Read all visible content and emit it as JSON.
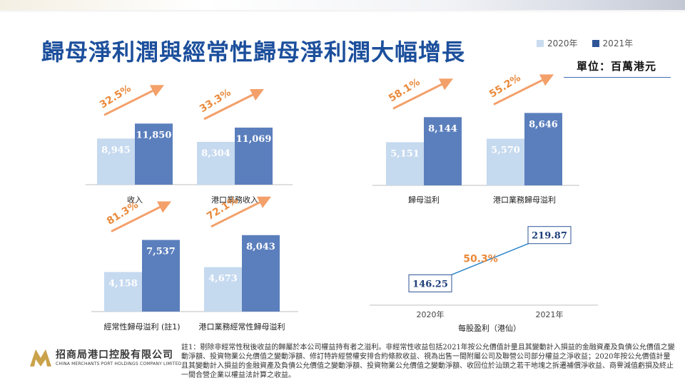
{
  "slide": {
    "title": "歸母淨利潤與經常性歸母淨利潤大幅增長",
    "unit": "單位：百萬港元",
    "footnote": "註1：剔除非經常性稅後收益的歸屬於本公司權益持有者之溢利。非經常性收益包括2021年按公允價值計量且其變動計入損益的金融資產及負債公允價值之變動淨額、投資物業公允價值之變動淨額、修訂特許經營權安排合約條款收益、視為出售一間附屬公司及聯營公司部分權益之淨收益；2020年按公允價值計量且其變動計入損益的金融資產及負債公允價值之變動淨額、投資物業公允價值之變動淨額、收回位於汕頭之若干地塊之拆遷補償淨收益、商譽減值虧損及終止一間合營企業以權益法計算之收益。"
  },
  "legend": {
    "items": [
      {
        "label": "2020年",
        "color": "#c9dcf0"
      },
      {
        "label": "2021年",
        "color": "#2f5597"
      }
    ]
  },
  "logo": {
    "name": "招商局港口控股有限公司",
    "sub": "CHINA MERCHANTS PORT HOLDINGS COMPANY LIMITED"
  },
  "colors": {
    "bar2020": "#c5d9ef",
    "bar2021": "#5b7fbd",
    "arrow": "#f3a06a",
    "growth": "#ea8a3c",
    "line": "#2e86c8",
    "axis": "#bfbfbf"
  },
  "chart_data": [
    {
      "type": "bar",
      "category": "收入",
      "series": [
        {
          "name": "2020年",
          "values": [
            8945
          ]
        },
        {
          "name": "2021年",
          "values": [
            11850
          ]
        }
      ],
      "value_labels": [
        "8,945",
        "11,850"
      ],
      "growth": "32.5%"
    },
    {
      "type": "bar",
      "category": "港口業務收入",
      "series": [
        {
          "name": "2020年",
          "values": [
            8304
          ]
        },
        {
          "name": "2021年",
          "values": [
            11069
          ]
        }
      ],
      "value_labels": [
        "8,304",
        "11,069"
      ],
      "growth": "33.3%"
    },
    {
      "type": "bar",
      "category": "歸母溢利",
      "series": [
        {
          "name": "2020年",
          "values": [
            5151
          ]
        },
        {
          "name": "2021年",
          "values": [
            8144
          ]
        }
      ],
      "value_labels": [
        "5,151",
        "8,144"
      ],
      "growth": "58.1%"
    },
    {
      "type": "bar",
      "category": "港口業務歸母溢利",
      "series": [
        {
          "name": "2020年",
          "values": [
            5570
          ]
        },
        {
          "name": "2021年",
          "values": [
            8646
          ]
        }
      ],
      "value_labels": [
        "5,570",
        "8,646"
      ],
      "growth": "55.2%"
    },
    {
      "type": "bar",
      "category": "經常性歸母溢利 (註1)",
      "series": [
        {
          "name": "2020年",
          "values": [
            4158
          ]
        },
        {
          "name": "2021年",
          "values": [
            7537
          ]
        }
      ],
      "value_labels": [
        "4,158",
        "7,537"
      ],
      "growth": "81.3%"
    },
    {
      "type": "bar",
      "category": "港口業務經常性歸母溢利",
      "series": [
        {
          "name": "2020年",
          "values": [
            4673
          ]
        },
        {
          "name": "2021年",
          "values": [
            8043
          ]
        }
      ],
      "value_labels": [
        "4,673",
        "8,043"
      ],
      "growth": "72.1%"
    },
    {
      "type": "line",
      "title": "每股盈利（港仙）",
      "x": [
        "2020年",
        "2021年"
      ],
      "values": [
        146.25,
        219.87
      ],
      "value_labels": [
        "146.25",
        "219.87"
      ],
      "growth": "50.3%"
    }
  ]
}
